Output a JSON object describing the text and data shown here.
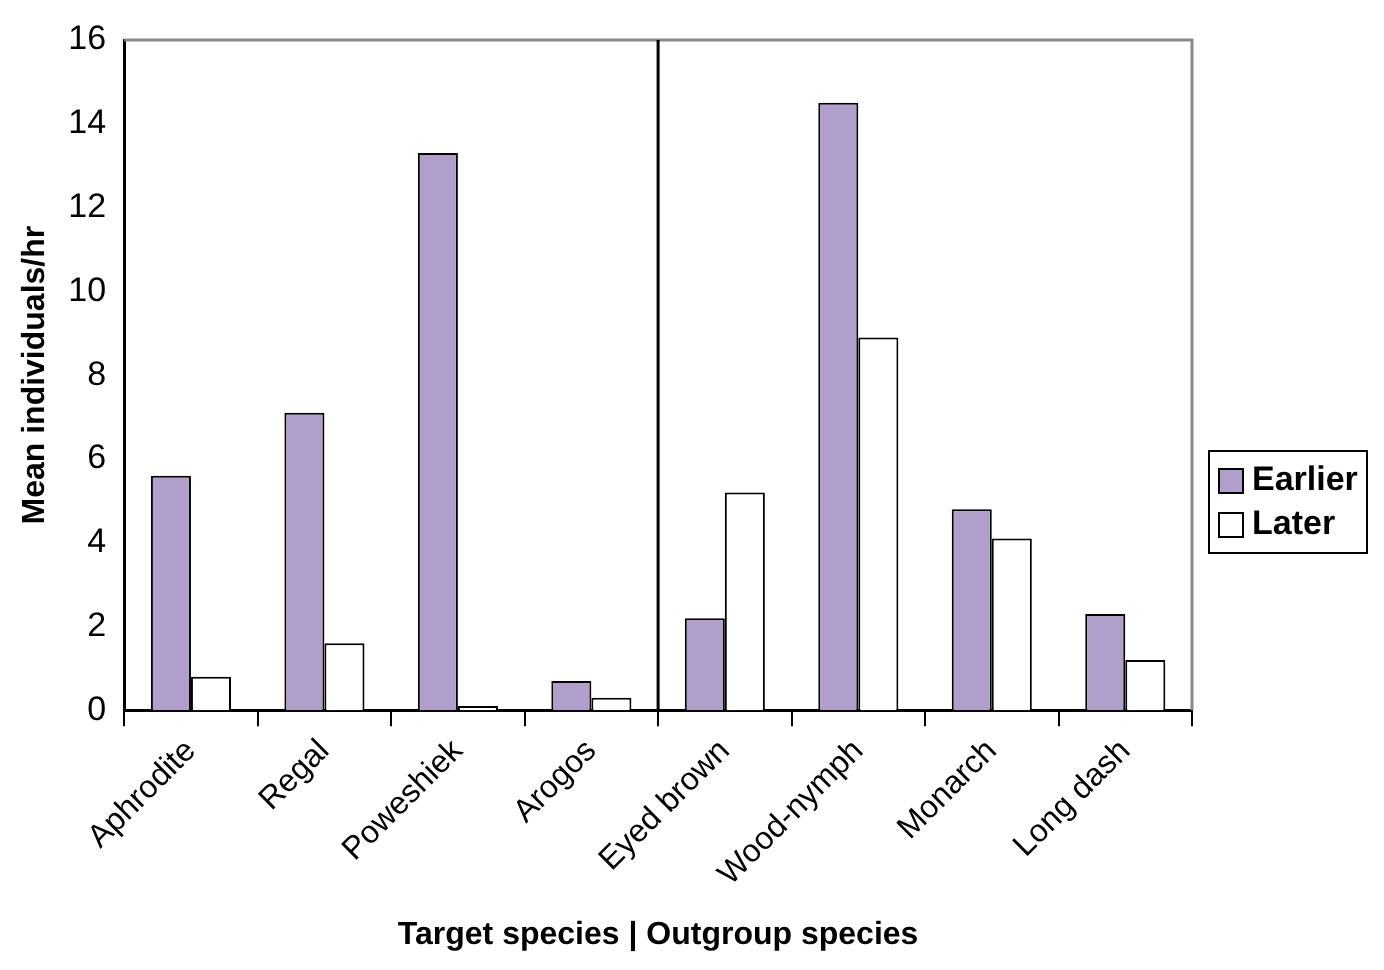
{
  "chart_data": {
    "type": "bar",
    "xlabel": "Target species | Outgroup species",
    "ylabel": "Mean individuals/hr",
    "categories": [
      "Aphrodite",
      "Regal",
      "Poweshiek",
      "Arogos",
      "Eyed brown",
      "Wood-nymph",
      "Monarch",
      "Long dash"
    ],
    "series": [
      {
        "name": "Earlier",
        "color": "#b09fcb",
        "values": [
          5.6,
          7.1,
          13.3,
          0.7,
          2.2,
          14.5,
          4.8,
          2.3
        ]
      },
      {
        "name": "Later",
        "color": "#ffffff",
        "values": [
          0.8,
          1.6,
          0.1,
          0.3,
          5.2,
          8.9,
          4.1,
          1.2
        ]
      }
    ],
    "ylim": [
      0,
      16
    ],
    "yticks": [
      0,
      2,
      4,
      6,
      8,
      10,
      12,
      14,
      16
    ],
    "grid": false,
    "legend": "right"
  }
}
